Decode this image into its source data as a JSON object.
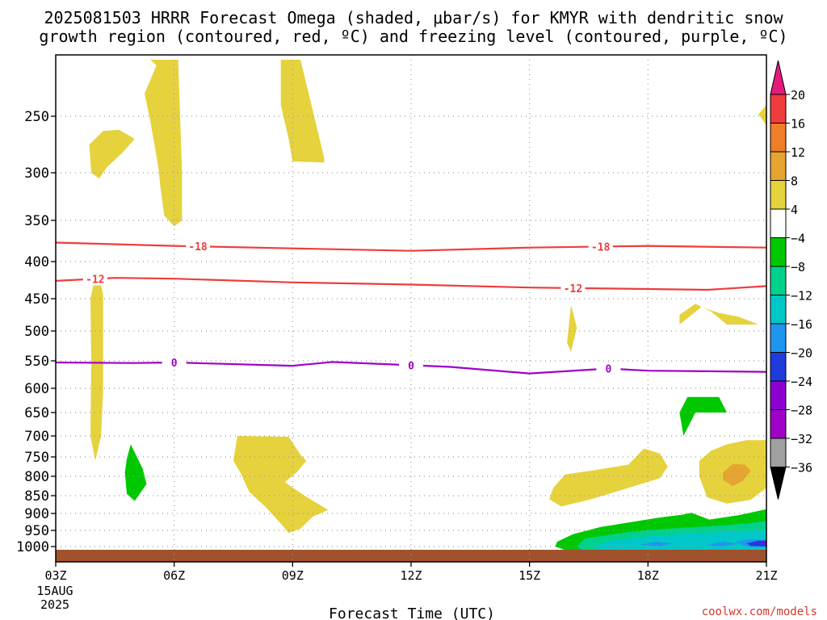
{
  "chart_data": {
    "type": "time-height cross section",
    "title_line1": "2025081503 HRRR Forecast Omega (shaded, μbar/s) for KMYR with dendritic snow",
    "title_line2": "growth region (contoured, red, ºC) and freezing level (contoured, purple, ºC)",
    "xlabel": "Forecast Time (UTC)",
    "ylabel": "",
    "credit": "coolwx.com/models",
    "x_ticks": [
      {
        "hour": 0,
        "label": "03Z"
      },
      {
        "hour": 3,
        "label": "06Z"
      },
      {
        "hour": 6,
        "label": "09Z"
      },
      {
        "hour": 9,
        "label": "12Z"
      },
      {
        "hour": 12,
        "label": "15Z"
      },
      {
        "hour": 15,
        "label": "18Z"
      },
      {
        "hour": 18,
        "label": "21Z"
      }
    ],
    "x_date_label": [
      "15AUG",
      "2025"
    ],
    "y_ticks": [
      250,
      300,
      350,
      400,
      450,
      500,
      550,
      600,
      650,
      700,
      750,
      800,
      850,
      900,
      950,
      1000
    ],
    "colorbar_labels": [
      "20",
      "16",
      "12",
      "8",
      "4",
      "−4",
      "−8",
      "−12",
      "−16",
      "−20",
      "−24",
      "−28",
      "−32",
      "−36"
    ],
    "colorbar_colors": [
      "#f03c3c",
      "#f07d28",
      "#e6a530",
      "#e6d23c",
      "#ffffff",
      "#00c800",
      "#00d28c",
      "#00c8c8",
      "#1e96f0",
      "#1e3cdc",
      "#8c00d2",
      "#a000c8",
      "#a0a0a0"
    ],
    "colorbar_top_color": "#e6197d",
    "colorbar_bottom_color": "#000000",
    "isotherms": [
      {
        "name": "-18",
        "color": "#ef3c3c",
        "points": [
          [
            0,
            377
          ],
          [
            3,
            381
          ],
          [
            6,
            384
          ],
          [
            9,
            387
          ],
          [
            12,
            383
          ],
          [
            15,
            381
          ],
          [
            18,
            383
          ]
        ],
        "labels": [
          3.6,
          13.8
        ]
      },
      {
        "name": "-12",
        "color": "#ef3c3c",
        "points": [
          [
            0,
            426
          ],
          [
            1.5,
            422
          ],
          [
            3,
            423
          ],
          [
            6,
            428
          ],
          [
            9,
            431
          ],
          [
            12,
            435
          ],
          [
            15,
            437
          ],
          [
            16.5,
            438
          ],
          [
            18,
            433
          ]
        ],
        "labels": [
          1.0,
          13.1
        ]
      },
      {
        "name": "0",
        "color": "#a000c8",
        "points": [
          [
            0,
            553
          ],
          [
            2,
            554
          ],
          [
            3,
            553
          ],
          [
            6,
            559
          ],
          [
            7,
            552
          ],
          [
            9,
            558
          ],
          [
            10,
            561
          ],
          [
            12,
            573
          ],
          [
            14,
            564
          ],
          [
            15,
            568
          ],
          [
            18,
            570
          ]
        ],
        "labels": [
          3.0,
          9.0,
          14.0
        ]
      }
    ],
    "omega_regions": [
      {
        "level": "4 to 8",
        "color": "#e6d23c",
        "points": [
          [
            1.8,
            200
          ],
          [
            2.4,
            200
          ],
          [
            2.55,
            205
          ],
          [
            2.25,
            230
          ],
          [
            2.4,
            255
          ],
          [
            2.5,
            275
          ],
          [
            2.6,
            295
          ],
          [
            2.65,
            315
          ],
          [
            2.75,
            345
          ],
          [
            3.0,
            357
          ],
          [
            3.2,
            350
          ],
          [
            3.2,
            300
          ],
          [
            3.15,
            250
          ],
          [
            3.1,
            200
          ]
        ]
      },
      {
        "level": "4 to 8",
        "color": "#e6d23c",
        "points": [
          [
            0.85,
            275
          ],
          [
            1.2,
            263
          ],
          [
            1.6,
            262
          ],
          [
            2.0,
            270
          ],
          [
            1.7,
            282
          ],
          [
            1.3,
            295
          ],
          [
            1.1,
            306
          ],
          [
            0.9,
            300
          ]
        ]
      },
      {
        "level": "4 to 8",
        "color": "#e6d23c",
        "points": [
          [
            5.7,
            200
          ],
          [
            6.2,
            200
          ],
          [
            6.6,
            258
          ],
          [
            6.8,
            287
          ],
          [
            6.8,
            291
          ],
          [
            6.0,
            290
          ],
          [
            5.9,
            270
          ],
          [
            5.7,
            240
          ]
        ]
      },
      {
        "level": "4 to 8",
        "color": "#e6d23c",
        "points": [
          [
            18.0,
            240
          ],
          [
            17.8,
            248
          ],
          [
            18.0,
            258
          ]
        ]
      },
      {
        "level": "4 to 8",
        "color": "#e6d23c",
        "points": [
          [
            0.98,
            425
          ],
          [
            1.08,
            415
          ],
          [
            1.2,
            445
          ],
          [
            1.2,
            600
          ],
          [
            1.15,
            700
          ],
          [
            1.0,
            760
          ],
          [
            0.88,
            700
          ],
          [
            0.9,
            550
          ],
          [
            0.88,
            450
          ]
        ]
      },
      {
        "level": "4 to 8",
        "color": "#e6d23c",
        "points": [
          [
            15.8,
            475
          ],
          [
            16.2,
            458
          ],
          [
            16.6,
            470
          ],
          [
            17.0,
            490
          ],
          [
            17.8,
            490
          ],
          [
            17.3,
            478
          ],
          [
            16.8,
            472
          ],
          [
            16.35,
            463
          ],
          [
            15.8,
            490
          ]
        ]
      },
      {
        "level": "4 to 8",
        "color": "#e6d23c",
        "points": [
          [
            12.95,
            520
          ],
          [
            13.05,
            460
          ],
          [
            13.2,
            495
          ],
          [
            13.05,
            535
          ]
        ]
      },
      {
        "level": "4 to 8",
        "color": "#e6d23c",
        "points": [
          [
            4.6,
            700
          ],
          [
            5.9,
            702
          ],
          [
            6.2,
            745
          ],
          [
            6.35,
            760
          ],
          [
            6.1,
            790
          ],
          [
            5.8,
            815
          ],
          [
            6.3,
            850
          ],
          [
            6.9,
            890
          ],
          [
            6.5,
            910
          ],
          [
            6.2,
            945
          ],
          [
            5.9,
            958
          ],
          [
            5.7,
            930
          ],
          [
            5.3,
            880
          ],
          [
            4.9,
            840
          ],
          [
            4.7,
            795
          ],
          [
            4.5,
            760
          ]
        ]
      },
      {
        "level": "4 to 8",
        "color": "#e6d23c",
        "points": [
          [
            12.6,
            830
          ],
          [
            12.9,
            795
          ],
          [
            13.6,
            785
          ],
          [
            14.5,
            770
          ],
          [
            14.9,
            730
          ],
          [
            15.3,
            742
          ],
          [
            15.5,
            775
          ],
          [
            15.3,
            805
          ],
          [
            14.5,
            830
          ],
          [
            13.5,
            862
          ],
          [
            12.8,
            880
          ],
          [
            12.5,
            860
          ]
        ]
      },
      {
        "level": "4 to 8",
        "color": "#e6d23c",
        "points": [
          [
            16.3,
            760
          ],
          [
            16.6,
            735
          ],
          [
            17.0,
            720
          ],
          [
            17.5,
            710
          ],
          [
            18.0,
            710
          ],
          [
            18.0,
            830
          ],
          [
            17.6,
            862
          ],
          [
            17.0,
            872
          ],
          [
            16.5,
            855
          ],
          [
            16.3,
            800
          ]
        ]
      },
      {
        "level": "8 to 12",
        "color": "#e6a530",
        "points": [
          [
            16.9,
            790
          ],
          [
            17.15,
            768
          ],
          [
            17.45,
            770
          ],
          [
            17.6,
            785
          ],
          [
            17.4,
            812
          ],
          [
            17.15,
            825
          ],
          [
            16.9,
            810
          ]
        ]
      },
      {
        "level": "-4 to -8",
        "color": "#00c800",
        "points": [
          [
            1.9,
            720
          ],
          [
            2.2,
            780
          ],
          [
            2.3,
            820
          ],
          [
            2.0,
            865
          ],
          [
            1.8,
            845
          ],
          [
            1.75,
            790
          ],
          [
            1.8,
            755
          ]
        ]
      },
      {
        "level": "-4 to -8",
        "color": "#00c800",
        "points": [
          [
            16.0,
            618
          ],
          [
            16.8,
            618
          ],
          [
            17.0,
            650
          ],
          [
            16.2,
            650
          ],
          [
            15.9,
            700
          ],
          [
            15.8,
            650
          ]
        ]
      },
      {
        "level": "-4 to -8",
        "color": "#00c800",
        "points": [
          [
            12.7,
            985
          ],
          [
            13.1,
            962
          ],
          [
            13.8,
            940
          ],
          [
            14.6,
            925
          ],
          [
            15.3,
            912
          ],
          [
            15.85,
            904
          ],
          [
            16.1,
            898
          ],
          [
            16.55,
            918
          ],
          [
            17.3,
            905
          ],
          [
            18.0,
            888
          ],
          [
            18.0,
            1020
          ],
          [
            13.0,
            1015
          ],
          [
            12.65,
            1000
          ]
        ]
      },
      {
        "level": "-8 to -12",
        "color": "#00d28c",
        "points": [
          [
            13.2,
            1000
          ],
          [
            13.4,
            975
          ],
          [
            14.5,
            955
          ],
          [
            15.5,
            945
          ],
          [
            16.5,
            938
          ],
          [
            17.5,
            930
          ],
          [
            18.0,
            922
          ],
          [
            18.0,
            1015
          ],
          [
            13.4,
            1015
          ]
        ]
      },
      {
        "level": "-12 to -16",
        "color": "#00c8c8",
        "points": [
          [
            13.6,
            1003
          ],
          [
            14.0,
            982
          ],
          [
            15.0,
            968
          ],
          [
            16.0,
            960
          ],
          [
            17.0,
            955
          ],
          [
            18.0,
            948
          ],
          [
            18.0,
            1012
          ],
          [
            14.0,
            1012
          ]
        ]
      },
      {
        "level": "-16 to -20",
        "color": "#1e96f0",
        "points": [
          [
            14.8,
            995
          ],
          [
            15.2,
            985
          ],
          [
            15.6,
            990
          ],
          [
            15.3,
            1000
          ]
        ]
      },
      {
        "level": "-16 to -20",
        "color": "#1e96f0",
        "points": [
          [
            16.5,
            995
          ],
          [
            16.9,
            985
          ],
          [
            17.3,
            992
          ],
          [
            16.8,
            1000
          ]
        ]
      },
      {
        "level": "-16 to -20",
        "color": "#1e96f0",
        "points": [
          [
            17.2,
            985
          ],
          [
            17.6,
            978
          ],
          [
            18.0,
            978
          ],
          [
            18.0,
            1003
          ],
          [
            17.5,
            1000
          ]
        ]
      },
      {
        "level": "-20 to -24",
        "color": "#1e3cdc",
        "points": [
          [
            17.5,
            990
          ],
          [
            17.8,
            982
          ],
          [
            18.0,
            982
          ],
          [
            18.0,
            1000
          ],
          [
            17.6,
            998
          ]
        ]
      },
      {
        "level": "-24 to -28",
        "color": "#8c00d2",
        "points": [
          [
            17.85,
            988
          ],
          [
            18.0,
            985
          ],
          [
            18.0,
            996
          ]
        ]
      }
    ],
    "ground_color": "#a0522d"
  }
}
